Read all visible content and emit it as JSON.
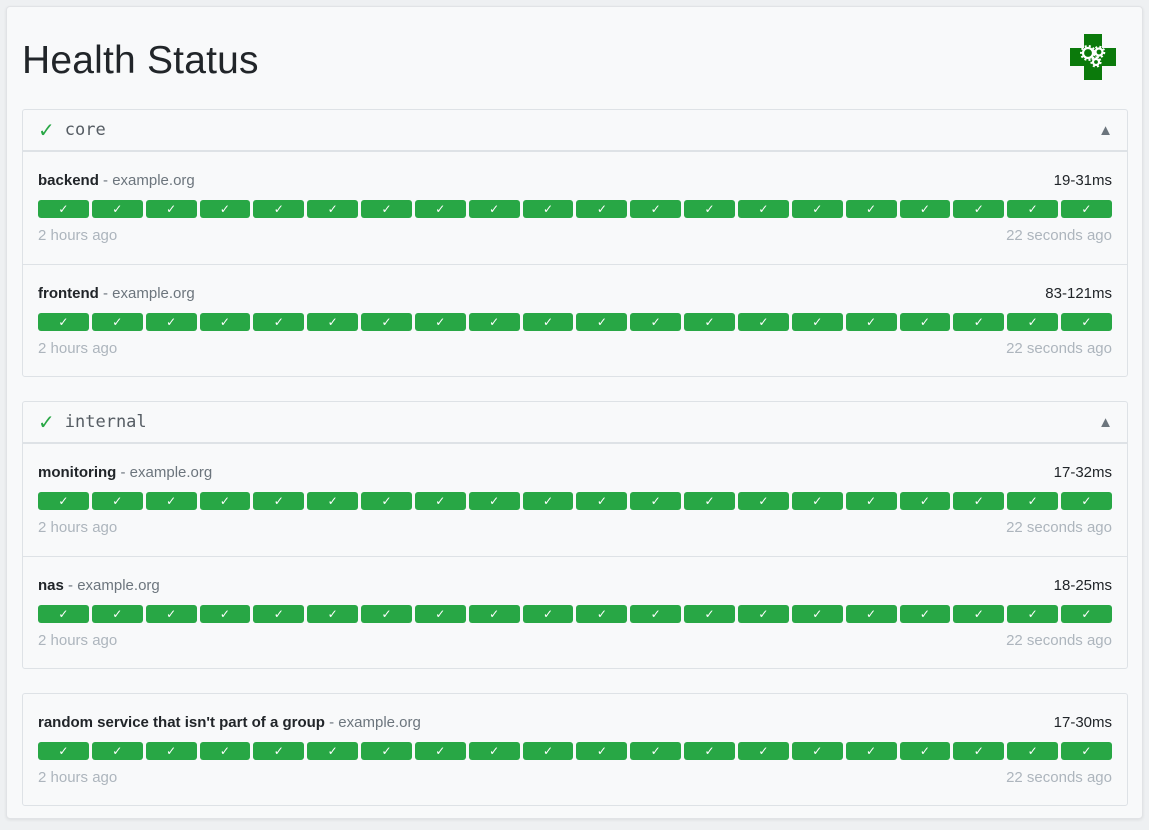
{
  "header": {
    "title": "Health Status",
    "logo": "health-gears-cross-logo"
  },
  "colors": {
    "success": "#28a745",
    "check_icon": "#28a745"
  },
  "groups": [
    {
      "name": "core",
      "status_icon": "check-icon",
      "toggle_icon": "triangle-up-icon",
      "toggle": "▲",
      "check": "✓",
      "services": [
        {
          "name": "backend",
          "host": "example.org",
          "response": "19-31ms",
          "oldest": "2 hours ago",
          "newest": "22 seconds ago",
          "results": 20
        },
        {
          "name": "frontend",
          "host": "example.org",
          "response": "83-121ms",
          "oldest": "2 hours ago",
          "newest": "22 seconds ago",
          "results": 20
        }
      ]
    },
    {
      "name": "internal",
      "status_icon": "check-icon",
      "toggle_icon": "triangle-up-icon",
      "toggle": "▲",
      "check": "✓",
      "services": [
        {
          "name": "monitoring",
          "host": "example.org",
          "response": "17-32ms",
          "oldest": "2 hours ago",
          "newest": "22 seconds ago",
          "results": 20
        },
        {
          "name": "nas",
          "host": "example.org",
          "response": "18-25ms",
          "oldest": "2 hours ago",
          "newest": "22 seconds ago",
          "results": 20
        }
      ]
    },
    {
      "name": null,
      "services": [
        {
          "name": "random service that isn't part of a group",
          "host": "example.org",
          "response": "17-30ms",
          "oldest": "2 hours ago",
          "newest": "22 seconds ago",
          "results": 20
        }
      ]
    }
  ],
  "separator": "-",
  "result_glyph": "✓"
}
